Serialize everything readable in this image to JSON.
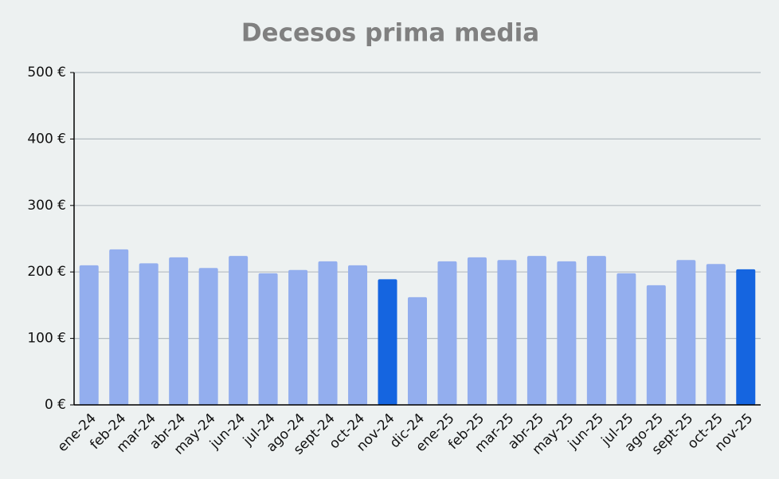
{
  "chart_data": {
    "type": "bar",
    "title": "Decesos prima media",
    "categories": [
      "ene-24",
      "feb-24",
      "mar-24",
      "abr-24",
      "may-24",
      "jun-24",
      "jul-24",
      "ago-24",
      "sept-24",
      "oct-24",
      "nov-24",
      "dic-24",
      "ene-25",
      "feb-25",
      "mar-25",
      "abr-25",
      "may-25",
      "jun-25",
      "jul-25",
      "ago-25",
      "sept-25",
      "oct-25",
      "nov-25"
    ],
    "values": [
      210,
      234,
      213,
      222,
      206,
      224,
      198,
      203,
      216,
      210,
      189,
      162,
      216,
      222,
      218,
      224,
      216,
      224,
      198,
      180,
      218,
      212,
      204
    ],
    "colors": [
      "#93aeee",
      "#93aeee",
      "#93aeee",
      "#93aeee",
      "#93aeee",
      "#93aeee",
      "#93aeee",
      "#93aeee",
      "#93aeee",
      "#93aeee",
      "#1565e0",
      "#93aeee",
      "#93aeee",
      "#93aeee",
      "#93aeee",
      "#93aeee",
      "#93aeee",
      "#93aeee",
      "#93aeee",
      "#93aeee",
      "#93aeee",
      "#93aeee",
      "#1565e0"
    ],
    "ylim": [
      0,
      500
    ],
    "yticks": [
      {
        "value": 0,
        "label": "0 €"
      },
      {
        "value": 100,
        "label": "100 €"
      },
      {
        "value": 200,
        "label": "200 €"
      },
      {
        "value": 300,
        "label": "300 €"
      },
      {
        "value": 400,
        "label": "400 €"
      },
      {
        "value": 500,
        "label": "500 €"
      }
    ],
    "grid": true
  }
}
